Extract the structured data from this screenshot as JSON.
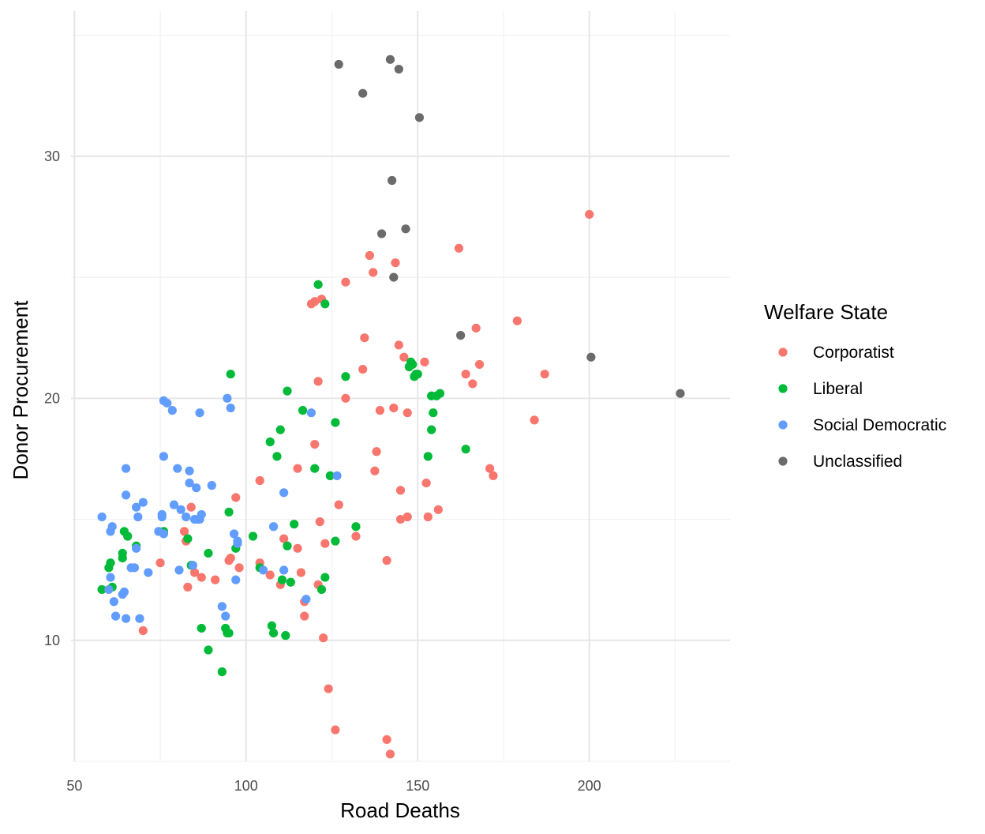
{
  "chart_data": {
    "type": "scatter",
    "title": "",
    "xlabel": "Road Deaths",
    "ylabel": "Donor Procurement",
    "xlim": [
      49,
      241
    ],
    "ylim": [
      5,
      36
    ],
    "x_ticks": [
      50,
      100,
      150,
      200
    ],
    "y_ticks": [
      10,
      20,
      30
    ],
    "grid": true,
    "legend": {
      "title": "Welfare State",
      "position": "right",
      "entries": [
        "Corporatist",
        "Liberal",
        "Social Democratic",
        "Unclassified"
      ]
    },
    "colors": {
      "Corporatist": "#F8766D",
      "Liberal": "#00BA38",
      "Social Democratic": "#619CFF",
      "Unclassified": "#6b6b6b"
    },
    "series": [
      {
        "name": "Corporatist",
        "points": [
          [
            70.0,
            10.4
          ],
          [
            75.0,
            13.2
          ],
          [
            82.0,
            14.5
          ],
          [
            82.5,
            14.1
          ],
          [
            83.0,
            12.2
          ],
          [
            84.0,
            15.5
          ],
          [
            85.0,
            12.8
          ],
          [
            87.0,
            12.6
          ],
          [
            91.0,
            12.5
          ],
          [
            95.0,
            13.3
          ],
          [
            95.5,
            13.4
          ],
          [
            97.0,
            15.9
          ],
          [
            98.0,
            13.0
          ],
          [
            104.0,
            16.6
          ],
          [
            104.0,
            13.2
          ],
          [
            107.0,
            12.7
          ],
          [
            110.0,
            12.3
          ],
          [
            111.0,
            14.2
          ],
          [
            115.0,
            13.8
          ],
          [
            115.0,
            17.1
          ],
          [
            116.0,
            12.8
          ],
          [
            117.0,
            11.0
          ],
          [
            117.0,
            11.6
          ],
          [
            119.0,
            23.9
          ],
          [
            120.0,
            24.0
          ],
          [
            120.0,
            18.1
          ],
          [
            121.0,
            20.7
          ],
          [
            121.0,
            12.3
          ],
          [
            121.5,
            14.9
          ],
          [
            122.0,
            24.1
          ],
          [
            122.5,
            10.1
          ],
          [
            123.0,
            14.0
          ],
          [
            124.0,
            8.0
          ],
          [
            126.0,
            6.3
          ],
          [
            127.0,
            15.6
          ],
          [
            129.0,
            20.0
          ],
          [
            129.0,
            24.8
          ],
          [
            132.0,
            14.3
          ],
          [
            134.0,
            21.2
          ],
          [
            134.5,
            22.5
          ],
          [
            136.0,
            25.9
          ],
          [
            137.0,
            25.2
          ],
          [
            137.5,
            17.0
          ],
          [
            138.0,
            17.8
          ],
          [
            139.0,
            19.5
          ],
          [
            141.0,
            13.3
          ],
          [
            141.0,
            5.9
          ],
          [
            142.0,
            5.3
          ],
          [
            143.0,
            19.6
          ],
          [
            143.5,
            25.6
          ],
          [
            144.5,
            22.2
          ],
          [
            145.0,
            16.2
          ],
          [
            145.0,
            15.0
          ],
          [
            146.0,
            21.7
          ],
          [
            147.0,
            19.4
          ],
          [
            147.0,
            15.1
          ],
          [
            152.0,
            21.5
          ],
          [
            152.5,
            16.5
          ],
          [
            153.0,
            15.1
          ],
          [
            156.0,
            15.4
          ],
          [
            162.0,
            26.2
          ],
          [
            164.0,
            21.0
          ],
          [
            166.0,
            20.6
          ],
          [
            167.0,
            22.9
          ],
          [
            168.0,
            21.4
          ],
          [
            171.0,
            17.1
          ],
          [
            172.0,
            16.8
          ],
          [
            179.0,
            23.2
          ],
          [
            184.0,
            19.1
          ],
          [
            187.0,
            21.0
          ],
          [
            200.0,
            27.6
          ]
        ]
      },
      {
        "name": "Liberal",
        "points": [
          [
            58.0,
            12.1
          ],
          [
            60.0,
            13.0
          ],
          [
            60.5,
            13.2
          ],
          [
            61.0,
            12.2
          ],
          [
            64.0,
            13.4
          ],
          [
            64.0,
            13.6
          ],
          [
            64.5,
            14.5
          ],
          [
            65.5,
            14.3
          ],
          [
            68.0,
            13.9
          ],
          [
            76.0,
            14.5
          ],
          [
            83.0,
            14.2
          ],
          [
            84.0,
            13.1
          ],
          [
            87.0,
            10.5
          ],
          [
            89.0,
            13.6
          ],
          [
            89.0,
            9.6
          ],
          [
            93.0,
            8.7
          ],
          [
            94.0,
            10.5
          ],
          [
            94.5,
            10.3
          ],
          [
            95.0,
            10.3
          ],
          [
            95.0,
            15.3
          ],
          [
            95.5,
            21.0
          ],
          [
            97.0,
            13.8
          ],
          [
            102.0,
            14.3
          ],
          [
            104.0,
            13.0
          ],
          [
            107.0,
            18.2
          ],
          [
            107.5,
            10.6
          ],
          [
            108.0,
            10.3
          ],
          [
            109.0,
            17.6
          ],
          [
            110.0,
            18.7
          ],
          [
            110.5,
            12.5
          ],
          [
            111.5,
            10.2
          ],
          [
            112.0,
            13.9
          ],
          [
            112.0,
            20.3
          ],
          [
            113.0,
            12.4
          ],
          [
            114.0,
            14.8
          ],
          [
            116.5,
            19.5
          ],
          [
            120.0,
            17.1
          ],
          [
            121.0,
            24.7
          ],
          [
            122.0,
            12.1
          ],
          [
            123.0,
            12.6
          ],
          [
            123.0,
            23.9
          ],
          [
            124.5,
            16.8
          ],
          [
            126.0,
            14.1
          ],
          [
            126.0,
            19.0
          ],
          [
            129.0,
            20.9
          ],
          [
            132.0,
            14.7
          ],
          [
            147.5,
            21.3
          ],
          [
            148.0,
            21.5
          ],
          [
            148.5,
            21.4
          ],
          [
            149.0,
            20.9
          ],
          [
            149.5,
            21.0
          ],
          [
            150.0,
            21.0
          ],
          [
            153.0,
            17.6
          ],
          [
            154.0,
            20.1
          ],
          [
            154.0,
            18.7
          ],
          [
            154.5,
            19.4
          ],
          [
            155.5,
            20.1
          ],
          [
            156.5,
            20.2
          ],
          [
            164.0,
            17.9
          ]
        ]
      },
      {
        "name": "Social Democratic",
        "points": [
          [
            58.0,
            15.1
          ],
          [
            60.0,
            12.1
          ],
          [
            60.5,
            12.6
          ],
          [
            60.5,
            14.5
          ],
          [
            61.0,
            14.7
          ],
          [
            61.5,
            11.6
          ],
          [
            62.0,
            11.0
          ],
          [
            64.0,
            11.9
          ],
          [
            64.5,
            12.0
          ],
          [
            65.0,
            10.9
          ],
          [
            65.0,
            16.0
          ],
          [
            65.0,
            17.1
          ],
          [
            66.5,
            13.0
          ],
          [
            67.5,
            13.0
          ],
          [
            68.0,
            13.8
          ],
          [
            68.0,
            15.5
          ],
          [
            68.5,
            15.1
          ],
          [
            69.0,
            10.9
          ],
          [
            70.0,
            15.7
          ],
          [
            71.5,
            12.8
          ],
          [
            74.5,
            14.5
          ],
          [
            75.5,
            15.2
          ],
          [
            75.5,
            15.1
          ],
          [
            76.0,
            14.4
          ],
          [
            76.0,
            19.9
          ],
          [
            76.0,
            17.6
          ],
          [
            77.0,
            19.8
          ],
          [
            78.5,
            19.5
          ],
          [
            79.0,
            15.6
          ],
          [
            80.0,
            17.1
          ],
          [
            80.5,
            12.9
          ],
          [
            81.0,
            15.4
          ],
          [
            82.5,
            15.1
          ],
          [
            83.5,
            16.5
          ],
          [
            83.5,
            17.0
          ],
          [
            84.5,
            13.1
          ],
          [
            85.0,
            15.0
          ],
          [
            85.5,
            16.3
          ],
          [
            86.0,
            15.0
          ],
          [
            86.5,
            15.0
          ],
          [
            86.5,
            19.4
          ],
          [
            87.0,
            15.2
          ],
          [
            90.0,
            16.4
          ],
          [
            93.0,
            11.4
          ],
          [
            94.0,
            11.0
          ],
          [
            94.5,
            20.0
          ],
          [
            95.5,
            19.6
          ],
          [
            96.5,
            14.4
          ],
          [
            97.0,
            12.5
          ],
          [
            97.5,
            14.0
          ],
          [
            97.5,
            14.1
          ],
          [
            105.0,
            12.9
          ],
          [
            108.0,
            14.7
          ],
          [
            111.0,
            12.9
          ],
          [
            111.0,
            16.1
          ],
          [
            117.5,
            11.7
          ],
          [
            119.0,
            19.4
          ],
          [
            126.5,
            16.8
          ]
        ]
      },
      {
        "name": "Unclassified",
        "points": [
          [
            127.0,
            33.8
          ],
          [
            134.0,
            32.6
          ],
          [
            139.5,
            26.8
          ],
          [
            142.0,
            34.0
          ],
          [
            142.5,
            29.0
          ],
          [
            143.0,
            25.0
          ],
          [
            144.5,
            33.6
          ],
          [
            146.5,
            27.0
          ],
          [
            150.5,
            31.6
          ],
          [
            162.5,
            22.6
          ],
          [
            200.5,
            21.7
          ],
          [
            226.5,
            20.2
          ]
        ]
      }
    ]
  }
}
